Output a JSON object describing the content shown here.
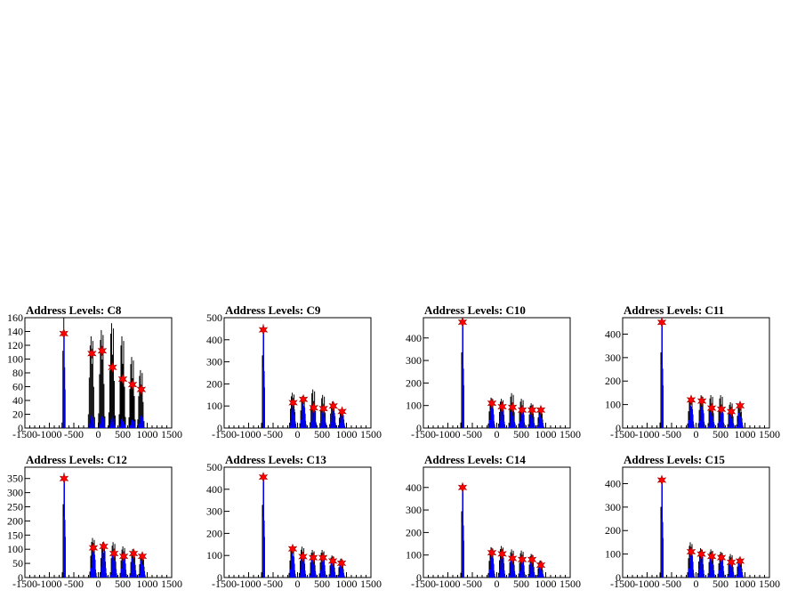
{
  "chart_data": [
    {
      "type": "line",
      "title": "Address Levels: C8",
      "xlim": [
        -1500,
        1500
      ],
      "ylim": [
        0,
        160
      ],
      "xticks": [
        -1500,
        -1000,
        -500,
        0,
        500,
        1000,
        1500
      ],
      "xtick_labels": [
        "-1500",
        "-1000",
        "-500",
        "0",
        "500",
        "1000",
        "1500"
      ],
      "yticks": [
        0,
        20,
        40,
        60,
        80,
        100,
        120,
        140,
        160
      ],
      "peaks": [
        {
          "x": -705,
          "hist_black": 160,
          "hist_blue": 140,
          "marker": 137
        },
        {
          "x": -130,
          "hist_black": 133,
          "hist_blue": 18,
          "marker": 108
        },
        {
          "x": 80,
          "hist_black": 142,
          "hist_blue": 17,
          "marker": 112
        },
        {
          "x": 290,
          "hist_black": 152,
          "hist_blue": 16,
          "marker": 88
        },
        {
          "x": 500,
          "hist_black": 133,
          "hist_blue": 16,
          "marker": 71
        },
        {
          "x": 700,
          "hist_black": 103,
          "hist_blue": 12,
          "marker": 63
        },
        {
          "x": 880,
          "hist_black": 84,
          "hist_blue": 18,
          "marker": 56
        }
      ]
    },
    {
      "type": "line",
      "title": "Address Levels: C9",
      "xlim": [
        -1500,
        1500
      ],
      "ylim": [
        0,
        500
      ],
      "xticks": [
        -1500,
        -1000,
        -500,
        0,
        500,
        1000,
        1500
      ],
      "xtick_labels": [
        "-1500",
        "-1000",
        "-500",
        "0",
        "500",
        "1000",
        "1500"
      ],
      "yticks": [
        0,
        100,
        200,
        300,
        400,
        500
      ],
      "peaks": [
        {
          "x": -700,
          "hist_black": 470,
          "hist_blue": 460,
          "marker": 445
        },
        {
          "x": -90,
          "hist_black": 160,
          "hist_blue": 100,
          "marker": 115
        },
        {
          "x": 120,
          "hist_black": 145,
          "hist_blue": 110,
          "marker": 130
        },
        {
          "x": 330,
          "hist_black": 175,
          "hist_blue": 90,
          "marker": 92
        },
        {
          "x": 530,
          "hist_black": 150,
          "hist_blue": 85,
          "marker": 88
        },
        {
          "x": 730,
          "hist_black": 120,
          "hist_blue": 80,
          "marker": 100
        },
        {
          "x": 910,
          "hist_black": 85,
          "hist_blue": 70,
          "marker": 75
        }
      ]
    },
    {
      "type": "line",
      "title": "Address Levels: C10",
      "xlim": [
        -1500,
        1500
      ],
      "ylim": [
        0,
        490
      ],
      "xticks": [
        -1500,
        -1000,
        -500,
        0,
        500,
        1000,
        1500
      ],
      "xtick_labels": [
        "-1500",
        "-1000",
        "-500",
        "0",
        "500",
        "1000",
        "1500"
      ],
      "yticks": [
        0,
        100,
        200,
        300,
        400
      ],
      "peaks": [
        {
          "x": -700,
          "hist_black": 480,
          "hist_blue": 475,
          "marker": 470
        },
        {
          "x": -100,
          "hist_black": 135,
          "hist_blue": 100,
          "marker": 110
        },
        {
          "x": 110,
          "hist_black": 130,
          "hist_blue": 95,
          "marker": 95
        },
        {
          "x": 320,
          "hist_black": 155,
          "hist_blue": 90,
          "marker": 92
        },
        {
          "x": 520,
          "hist_black": 130,
          "hist_blue": 85,
          "marker": 80
        },
        {
          "x": 720,
          "hist_black": 110,
          "hist_blue": 75,
          "marker": 80
        },
        {
          "x": 900,
          "hist_black": 85,
          "hist_blue": 75,
          "marker": 80
        }
      ]
    },
    {
      "type": "line",
      "title": "Address Levels: C11",
      "xlim": [
        -1500,
        1500
      ],
      "ylim": [
        0,
        470
      ],
      "xticks": [
        -1500,
        -1000,
        -500,
        0,
        500,
        1000,
        1500
      ],
      "xtick_labels": [
        "-1500",
        "-1000",
        "-500",
        "0",
        "500",
        "1000",
        "1500"
      ],
      "yticks": [
        0,
        100,
        200,
        300,
        400
      ],
      "peaks": [
        {
          "x": -700,
          "hist_black": 460,
          "hist_blue": 455,
          "marker": 450
        },
        {
          "x": -100,
          "hist_black": 130,
          "hist_blue": 95,
          "marker": 120
        },
        {
          "x": 120,
          "hist_black": 140,
          "hist_blue": 90,
          "marker": 115
        },
        {
          "x": 320,
          "hist_black": 140,
          "hist_blue": 85,
          "marker": 85
        },
        {
          "x": 520,
          "hist_black": 140,
          "hist_blue": 80,
          "marker": 80
        },
        {
          "x": 720,
          "hist_black": 110,
          "hist_blue": 70,
          "marker": 70
        },
        {
          "x": 900,
          "hist_black": 95,
          "hist_blue": 80,
          "marker": 95
        }
      ]
    },
    {
      "type": "line",
      "title": "Address Levels: C12",
      "xlim": [
        -1500,
        1500
      ],
      "ylim": [
        0,
        390
      ],
      "xticks": [
        -1500,
        -1000,
        -500,
        0,
        500,
        1000,
        1500
      ],
      "xtick_labels": [
        "-1500",
        "-1000",
        "-500",
        "0",
        "500",
        "1000",
        "1500"
      ],
      "yticks": [
        0,
        50,
        100,
        150,
        200,
        250,
        300,
        350
      ],
      "peaks": [
        {
          "x": -700,
          "hist_black": 370,
          "hist_blue": 360,
          "marker": 350
        },
        {
          "x": -100,
          "hist_black": 140,
          "hist_blue": 95,
          "marker": 105
        },
        {
          "x": 110,
          "hist_black": 125,
          "hist_blue": 110,
          "marker": 110
        },
        {
          "x": 320,
          "hist_black": 125,
          "hist_blue": 100,
          "marker": 85
        },
        {
          "x": 520,
          "hist_black": 110,
          "hist_blue": 90,
          "marker": 75
        },
        {
          "x": 720,
          "hist_black": 100,
          "hist_blue": 85,
          "marker": 85
        },
        {
          "x": 900,
          "hist_black": 85,
          "hist_blue": 75,
          "marker": 75
        }
      ]
    },
    {
      "type": "line",
      "title": "Address Levels: C13",
      "xlim": [
        -1500,
        1500
      ],
      "ylim": [
        0,
        500
      ],
      "xticks": [
        -1500,
        -1000,
        -500,
        0,
        500,
        1000,
        1500
      ],
      "xtick_labels": [
        "-1500",
        "-1000",
        "-500",
        "0",
        "500",
        "1000",
        "1500"
      ],
      "yticks": [
        0,
        100,
        200,
        300,
        400,
        500
      ],
      "peaks": [
        {
          "x": -700,
          "hist_black": 470,
          "hist_blue": 460,
          "marker": 455
        },
        {
          "x": -100,
          "hist_black": 140,
          "hist_blue": 110,
          "marker": 130
        },
        {
          "x": 110,
          "hist_black": 140,
          "hist_blue": 105,
          "marker": 95
        },
        {
          "x": 320,
          "hist_black": 125,
          "hist_blue": 100,
          "marker": 90
        },
        {
          "x": 520,
          "hist_black": 125,
          "hist_blue": 95,
          "marker": 90
        },
        {
          "x": 720,
          "hist_black": 100,
          "hist_blue": 85,
          "marker": 75
        },
        {
          "x": 900,
          "hist_black": 85,
          "hist_blue": 70,
          "marker": 65
        }
      ]
    },
    {
      "type": "line",
      "title": "Address Levels: C14",
      "xlim": [
        -1500,
        1500
      ],
      "ylim": [
        0,
        490
      ],
      "xticks": [
        -1500,
        -1000,
        -500,
        0,
        500,
        1000,
        1500
      ],
      "xtick_labels": [
        "-1500",
        "-1000",
        "-500",
        "0",
        "500",
        "1000",
        "1500"
      ],
      "yticks": [
        0,
        100,
        200,
        300,
        400
      ],
      "peaks": [
        {
          "x": -700,
          "hist_black": 420,
          "hist_blue": 410,
          "marker": 400
        },
        {
          "x": -100,
          "hist_black": 135,
          "hist_blue": 100,
          "marker": 110
        },
        {
          "x": 110,
          "hist_black": 140,
          "hist_blue": 105,
          "marker": 105
        },
        {
          "x": 320,
          "hist_black": 125,
          "hist_blue": 95,
          "marker": 85
        },
        {
          "x": 520,
          "hist_black": 120,
          "hist_blue": 85,
          "marker": 80
        },
        {
          "x": 720,
          "hist_black": 105,
          "hist_blue": 80,
          "marker": 80
        },
        {
          "x": 900,
          "hist_black": 75,
          "hist_blue": 55,
          "marker": 55
        }
      ]
    },
    {
      "type": "line",
      "title": "Address Levels: C15",
      "xlim": [
        -1500,
        1500
      ],
      "ylim": [
        0,
        470
      ],
      "xticks": [
        -1500,
        -1000,
        -500,
        0,
        500,
        1000,
        1500
      ],
      "xtick_labels": [
        "-1500",
        "-1000",
        "-500",
        "0",
        "500",
        "1000",
        "1500"
      ],
      "yticks": [
        0,
        100,
        200,
        300,
        400
      ],
      "peaks": [
        {
          "x": -700,
          "hist_black": 430,
          "hist_blue": 420,
          "marker": 415
        },
        {
          "x": -100,
          "hist_black": 150,
          "hist_blue": 110,
          "marker": 110
        },
        {
          "x": 110,
          "hist_black": 125,
          "hist_blue": 105,
          "marker": 100
        },
        {
          "x": 320,
          "hist_black": 120,
          "hist_blue": 100,
          "marker": 90
        },
        {
          "x": 520,
          "hist_black": 110,
          "hist_blue": 90,
          "marker": 85
        },
        {
          "x": 720,
          "hist_black": 100,
          "hist_blue": 80,
          "marker": 65
        },
        {
          "x": 900,
          "hist_black": 85,
          "hist_blue": 75,
          "marker": 70
        }
      ]
    }
  ],
  "colors": {
    "primary_hist": "#000000",
    "fit_hist": "#0000ff",
    "marker": "#ff0000"
  }
}
